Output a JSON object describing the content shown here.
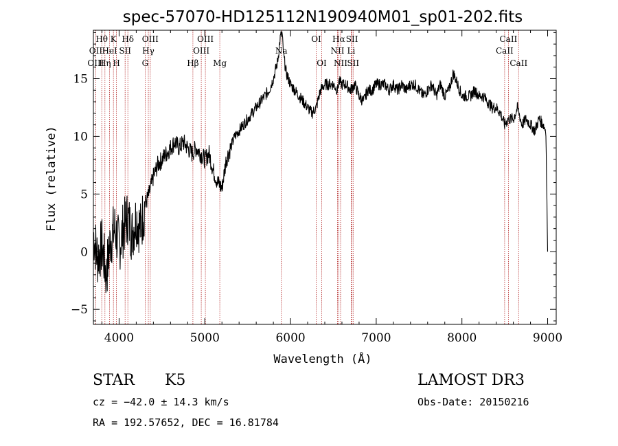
{
  "chart_data": {
    "type": "line",
    "title": "spec-57070-HD125112N190940M01_sp01-202.fits",
    "xlabel": "Wavelength (Å)",
    "ylabel": "Flux (relative)",
    "xlim": [
      3700,
      9100
    ],
    "ylim": [
      -6.3,
      19.2
    ],
    "x_ticks": [
      4000,
      5000,
      6000,
      7000,
      8000,
      9000
    ],
    "x_tick_labels": [
      "4000",
      "5000",
      "6000",
      "7000",
      "8000",
      "9000"
    ],
    "y_ticks": [
      -5,
      0,
      5,
      10,
      15
    ],
    "y_tick_labels": [
      "−5",
      "0",
      "5",
      "10",
      "15"
    ],
    "grid": false,
    "series": [
      {
        "values_x": [
          3700,
          3750,
          3800,
          3850,
          3900,
          3950,
          4000,
          4050,
          4100,
          4150,
          4200,
          4250,
          4300,
          4350,
          4400,
          4450,
          4500,
          4550,
          4600,
          4650,
          4700,
          4750,
          4800,
          4850,
          4900,
          4950,
          5000,
          5050,
          5100,
          5150,
          5200,
          5250,
          5300,
          5350,
          5400,
          5450,
          5500,
          5550,
          5600,
          5650,
          5700,
          5750,
          5800,
          5850,
          5880,
          5900,
          5920,
          5950,
          6000,
          6050,
          6100,
          6150,
          6200,
          6250,
          6300,
          6350,
          6400,
          6450,
          6500,
          6550,
          6563,
          6600,
          6650,
          6700,
          6750,
          6800,
          6850,
          6900,
          6950,
          7000,
          7050,
          7100,
          7150,
          7200,
          7250,
          7300,
          7350,
          7400,
          7450,
          7500,
          7550,
          7600,
          7650,
          7700,
          7750,
          7800,
          7850,
          7900,
          7950,
          8000,
          8050,
          8100,
          8150,
          8200,
          8250,
          8300,
          8350,
          8400,
          8450,
          8498,
          8542,
          8600,
          8650,
          8700,
          8750,
          8800,
          8850,
          8900,
          8950,
          8980,
          9000
        ],
        "values_y": [
          1.5,
          -0.5,
          0.5,
          -2.0,
          1.0,
          2.0,
          0.5,
          2.0,
          3.0,
          1.5,
          3.0,
          2.0,
          4.0,
          5.0,
          6.5,
          7.5,
          8.0,
          8.5,
          9.0,
          9.5,
          9.0,
          9.5,
          9.0,
          8.5,
          9.0,
          8.5,
          8.0,
          8.5,
          7.0,
          6.0,
          5.5,
          8.0,
          9.0,
          10.0,
          10.5,
          11.0,
          11.5,
          12.0,
          12.5,
          13.0,
          13.5,
          14.0,
          15.0,
          16.5,
          18.5,
          19.0,
          17.0,
          15.5,
          14.5,
          14.0,
          13.5,
          13.0,
          12.5,
          12.0,
          12.5,
          14.0,
          14.5,
          14.5,
          14.5,
          14.0,
          14.8,
          14.5,
          14.5,
          14.0,
          14.5,
          13.5,
          13.0,
          14.0,
          14.0,
          14.5,
          14.5,
          14.5,
          14.0,
          14.5,
          14.0,
          14.5,
          14.0,
          14.5,
          14.5,
          14.0,
          13.5,
          14.0,
          14.5,
          13.5,
          14.5,
          13.5,
          14.0,
          15.5,
          14.5,
          13.5,
          13.5,
          13.5,
          14.0,
          13.5,
          13.5,
          13.0,
          12.5,
          12.5,
          12.0,
          11.0,
          11.5,
          11.5,
          12.5,
          11.0,
          11.5,
          11.0,
          10.5,
          11.5,
          11.0,
          10.5,
          0.0
        ]
      }
    ],
    "line_markers": [
      {
        "label": "Hθ",
        "wavelength": 3798,
        "row": 1
      },
      {
        "label": "OII",
        "wavelength": 3727,
        "row": 2
      },
      {
        "label": "OIII",
        "wavelength": 3727,
        "row": 3
      },
      {
        "label": "Hη",
        "wavelength": 3835,
        "row": 3
      },
      {
        "label": "K",
        "wavelength": 3934,
        "row": 1
      },
      {
        "label": "HeI",
        "wavelength": 3889,
        "row": 2
      },
      {
        "label": "H",
        "wavelength": 3969,
        "row": 3
      },
      {
        "label": "SII",
        "wavelength": 4070,
        "row": 2
      },
      {
        "label": "Hδ",
        "wavelength": 4102,
        "row": 1
      },
      {
        "label": "OIII",
        "wavelength": 4363,
        "row": 1
      },
      {
        "label": "Hγ",
        "wavelength": 4341,
        "row": 2
      },
      {
        "label": "G",
        "wavelength": 4304,
        "row": 3
      },
      {
        "label": "Hβ",
        "wavelength": 4861,
        "row": 3
      },
      {
        "label": "OIII",
        "wavelength": 5007,
        "row": 1
      },
      {
        "label": "OIII",
        "wavelength": 4959,
        "row": 2
      },
      {
        "label": "Mg",
        "wavelength": 5175,
        "row": 3
      },
      {
        "label": "Na",
        "wavelength": 5893,
        "row": 2
      },
      {
        "label": "OI",
        "wavelength": 6300,
        "row": 1
      },
      {
        "label": "OI",
        "wavelength": 6364,
        "row": 3
      },
      {
        "label": "Hα",
        "wavelength": 6563,
        "row": 1
      },
      {
        "label": "NII",
        "wavelength": 6548,
        "row": 2
      },
      {
        "label": "NII",
        "wavelength": 6584,
        "row": 3
      },
      {
        "label": "SII",
        "wavelength": 6717,
        "row": 1
      },
      {
        "label": "Li",
        "wavelength": 6708,
        "row": 2
      },
      {
        "label": "SII",
        "wavelength": 6731,
        "row": 3
      },
      {
        "label": "CaII",
        "wavelength": 8542,
        "row": 1
      },
      {
        "label": "CaII",
        "wavelength": 8498,
        "row": 2
      },
      {
        "label": "CaII",
        "wavelength": 8662,
        "row": 3
      }
    ],
    "marker_lines_wavelengths": [
      3727,
      3798,
      3835,
      3889,
      3934,
      3969,
      4070,
      4102,
      4304,
      4341,
      4363,
      4861,
      4959,
      5007,
      5175,
      5893,
      6300,
      6364,
      6548,
      6563,
      6584,
      6708,
      6717,
      6731,
      8498,
      8542,
      8662
    ],
    "colors": {
      "spectrum": "#000000",
      "marker_lines": "#b22222",
      "axes": "#000000"
    }
  },
  "info": {
    "class_label": "STAR",
    "subclass_label": "K5",
    "survey": "LAMOST DR3",
    "redshift_line": "cz = −42.0 ± 14.3 km/s",
    "obs_date": "Obs-Date: 20150216",
    "coords": "RA = 192.57652, DEC =  16.81784"
  }
}
